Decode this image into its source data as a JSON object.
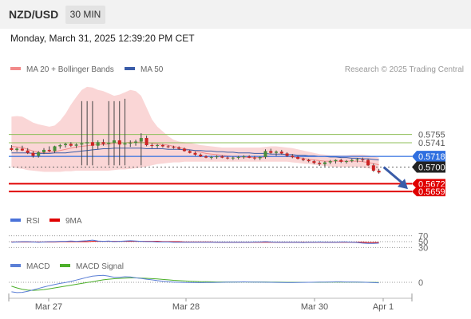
{
  "header": {
    "symbol": "NZD/USD",
    "timeframe": "30 MIN",
    "datetime": "Monday, March 31, 2025 12:39:20 PM CET"
  },
  "colors": {
    "bollinger": "#f28a8a",
    "ma50": "#3a5ca8",
    "green": "#8fbf5a",
    "blue": "#2f6fe0",
    "red": "#e00000",
    "black": "#222222",
    "rsi": "#4a72d9",
    "macd": "#5b7fd6",
    "macd_signal": "#4caf2a",
    "candle_up": "#4a8c3a",
    "candle_down": "#cc2222"
  },
  "chart_data": [
    {
      "type": "candlestick",
      "legend": [
        {
          "name": "MA 20 + Bollinger Bands",
          "color": "#f28a8a"
        },
        {
          "name": "MA 50",
          "color": "#3a5ca8"
        }
      ],
      "credit": "Research © 2025 Trading Central",
      "ylim": [
        0.5635,
        0.5847
      ],
      "x_ticks": [
        "Mar 27",
        "Mar 28",
        "Mar 30",
        "Apr 1"
      ],
      "levels": [
        {
          "value": 0.5755,
          "label": "0.5755",
          "kind": "green"
        },
        {
          "value": 0.5741,
          "label": "0.5741",
          "kind": "green"
        },
        {
          "value": 0.5718,
          "label": "0.5718",
          "kind": "blue"
        },
        {
          "value": 0.57,
          "label": "0.5700",
          "kind": "black"
        },
        {
          "value": 0.5672,
          "label": "0.5672",
          "kind": "red"
        },
        {
          "value": 0.5659,
          "label": "0.5659",
          "kind": "red"
        }
      ],
      "candles": [
        [
          0.5732,
          0.5737,
          0.5727,
          0.5729
        ],
        [
          0.5729,
          0.5733,
          0.5726,
          0.5731
        ],
        [
          0.5731,
          0.5736,
          0.5727,
          0.5728
        ],
        [
          0.5728,
          0.5732,
          0.5722,
          0.5724
        ],
        [
          0.5724,
          0.5727,
          0.5716,
          0.5719
        ],
        [
          0.5719,
          0.5727,
          0.5716,
          0.5725
        ],
        [
          0.5725,
          0.5732,
          0.5722,
          0.5729
        ],
        [
          0.5729,
          0.5735,
          0.5725,
          0.5727
        ],
        [
          0.5727,
          0.5736,
          0.5724,
          0.5735
        ],
        [
          0.5735,
          0.5739,
          0.5731,
          0.5737
        ],
        [
          0.5737,
          0.5741,
          0.5733,
          0.5739
        ],
        [
          0.5739,
          0.5742,
          0.5734,
          0.5736
        ],
        [
          0.5736,
          0.574,
          0.5732,
          0.5738
        ],
        [
          0.5738,
          0.5811,
          0.5703,
          0.574
        ],
        [
          0.574,
          0.5811,
          0.5703,
          0.5742
        ],
        [
          0.5742,
          0.5811,
          0.5703,
          0.5736
        ],
        [
          0.5736,
          0.5745,
          0.573,
          0.5742
        ],
        [
          0.5742,
          0.5747,
          0.5736,
          0.5739
        ],
        [
          0.5739,
          0.5811,
          0.5703,
          0.5741
        ],
        [
          0.5741,
          0.5811,
          0.5703,
          0.5745
        ],
        [
          0.5745,
          0.5811,
          0.5703,
          0.5738
        ],
        [
          0.5738,
          0.5815,
          0.5703,
          0.574
        ],
        [
          0.574,
          0.5745,
          0.5734,
          0.5741
        ],
        [
          0.5741,
          0.5746,
          0.5736,
          0.5743
        ],
        [
          0.5743,
          0.5757,
          0.5703,
          0.5749
        ],
        [
          0.5749,
          0.5753,
          0.5735,
          0.5737
        ],
        [
          0.5737,
          0.574,
          0.5732,
          0.5736
        ],
        [
          0.5736,
          0.5739,
          0.5732,
          0.5737
        ],
        [
          0.5737,
          0.5739,
          0.5733,
          0.5735
        ],
        [
          0.5735,
          0.5737,
          0.5732,
          0.5734
        ],
        [
          0.5734,
          0.5736,
          0.5731,
          0.5733
        ],
        [
          0.5733,
          0.5735,
          0.5729,
          0.5731
        ],
        [
          0.5731,
          0.5733,
          0.5726,
          0.5727
        ],
        [
          0.5727,
          0.5729,
          0.5723,
          0.5724
        ],
        [
          0.5724,
          0.5726,
          0.5719,
          0.5721
        ],
        [
          0.5721,
          0.5723,
          0.5717,
          0.5718
        ],
        [
          0.5718,
          0.572,
          0.5715,
          0.5716
        ],
        [
          0.5716,
          0.5719,
          0.5713,
          0.5717
        ],
        [
          0.5717,
          0.572,
          0.5714,
          0.5718
        ],
        [
          0.5718,
          0.572,
          0.5715,
          0.5716
        ],
        [
          0.5716,
          0.5718,
          0.5713,
          0.5715
        ],
        [
          0.5715,
          0.5718,
          0.5712,
          0.5716
        ],
        [
          0.5716,
          0.5719,
          0.5713,
          0.5717
        ],
        [
          0.5717,
          0.572,
          0.5714,
          0.5718
        ],
        [
          0.5718,
          0.572,
          0.5715,
          0.5716
        ],
        [
          0.5716,
          0.5719,
          0.5712,
          0.5715
        ],
        [
          0.5715,
          0.5718,
          0.5712,
          0.5717
        ],
        [
          0.5717,
          0.573,
          0.5714,
          0.5727
        ],
        [
          0.5727,
          0.5731,
          0.5722,
          0.5724
        ],
        [
          0.5724,
          0.5728,
          0.5719,
          0.5726
        ],
        [
          0.5726,
          0.5729,
          0.5721,
          0.5723
        ],
        [
          0.5723,
          0.5725,
          0.5717,
          0.5719
        ],
        [
          0.5719,
          0.5722,
          0.5715,
          0.5717
        ],
        [
          0.5717,
          0.5719,
          0.5713,
          0.5714
        ],
        [
          0.5714,
          0.5716,
          0.571,
          0.5712
        ],
        [
          0.5712,
          0.5714,
          0.5708,
          0.571
        ],
        [
          0.571,
          0.5712,
          0.5705,
          0.5707
        ],
        [
          0.5707,
          0.571,
          0.5702,
          0.5705
        ],
        [
          0.5705,
          0.571,
          0.5701,
          0.5708
        ],
        [
          0.5708,
          0.5712,
          0.5705,
          0.571
        ],
        [
          0.571,
          0.5713,
          0.5706,
          0.5712
        ],
        [
          0.5712,
          0.5714,
          0.5707,
          0.5709
        ],
        [
          0.5709,
          0.5712,
          0.5706,
          0.571
        ],
        [
          0.571,
          0.5714,
          0.5708,
          0.5712
        ],
        [
          0.5712,
          0.5715,
          0.5708,
          0.5713
        ],
        [
          0.5713,
          0.5716,
          0.5709,
          0.5712
        ],
        [
          0.5712,
          0.5714,
          0.5702,
          0.5703
        ],
        [
          0.5703,
          0.5706,
          0.5692,
          0.5694
        ],
        [
          0.5694,
          0.5697,
          0.5689,
          0.5691
        ]
      ],
      "upper_band": [
        0.5785,
        0.5786,
        0.5785,
        0.578,
        0.5775,
        0.5772,
        0.577,
        0.5768,
        0.577,
        0.5778,
        0.579,
        0.5805,
        0.5818,
        0.583,
        0.5835,
        0.5834,
        0.583,
        0.5828,
        0.5824,
        0.582,
        0.5822,
        0.5826,
        0.583,
        0.5828,
        0.582,
        0.58,
        0.578,
        0.5768,
        0.576,
        0.5752,
        0.5746,
        0.5743,
        0.5742,
        0.5741,
        0.5739,
        0.5737,
        0.5736,
        0.5735,
        0.5734,
        0.5733,
        0.5733,
        0.5733,
        0.5733,
        0.5733,
        0.5733,
        0.5733,
        0.5733,
        0.5734,
        0.5735,
        0.5735,
        0.5734,
        0.5733,
        0.5732,
        0.573,
        0.5728,
        0.5726,
        0.5724,
        0.5722,
        0.5721,
        0.572,
        0.572,
        0.572,
        0.572,
        0.5721,
        0.5721,
        0.5721,
        0.572,
        0.5718,
        0.5716
      ],
      "middle_band": [
        0.5735,
        0.5734,
        0.5733,
        0.573,
        0.5727,
        0.5725,
        0.5724,
        0.5725,
        0.5726,
        0.5728,
        0.573,
        0.5732,
        0.5734,
        0.5735,
        0.5736,
        0.5737,
        0.5738,
        0.5738,
        0.5739,
        0.574,
        0.5741,
        0.5741,
        0.5742,
        0.5742,
        0.5742,
        0.5741,
        0.574,
        0.5739,
        0.5738,
        0.5737,
        0.5735,
        0.5733,
        0.5731,
        0.5729,
        0.5727,
        0.5725,
        0.5723,
        0.5722,
        0.5721,
        0.572,
        0.5719,
        0.5718,
        0.5717,
        0.5717,
        0.5716,
        0.5716,
        0.5716,
        0.5717,
        0.5718,
        0.5718,
        0.5718,
        0.5718,
        0.5717,
        0.5716,
        0.5715,
        0.5713,
        0.5712,
        0.5711,
        0.571,
        0.571,
        0.571,
        0.571,
        0.571,
        0.571,
        0.571,
        0.5709,
        0.5708,
        0.5706,
        0.5704
      ],
      "lower_band": [
        0.57,
        0.5698,
        0.5697,
        0.5695,
        0.5694,
        0.5693,
        0.5692,
        0.5692,
        0.5692,
        0.5692,
        0.5693,
        0.5693,
        0.5694,
        0.5694,
        0.5694,
        0.5694,
        0.5694,
        0.5694,
        0.5694,
        0.5695,
        0.5696,
        0.5696,
        0.5697,
        0.5698,
        0.5699,
        0.5701,
        0.5703,
        0.5705,
        0.5706,
        0.5707,
        0.5708,
        0.5708,
        0.5709,
        0.5709,
        0.5709,
        0.5709,
        0.5709,
        0.5709,
        0.5709,
        0.5709,
        0.5709,
        0.5709,
        0.5709,
        0.5709,
        0.5709,
        0.5709,
        0.5709,
        0.5709,
        0.5709,
        0.5709,
        0.5709,
        0.5709,
        0.5708,
        0.5707,
        0.5706,
        0.5705,
        0.5704,
        0.5703,
        0.5702,
        0.5701,
        0.57,
        0.57,
        0.57,
        0.57,
        0.57,
        0.5699,
        0.5698,
        0.5696,
        0.5693
      ],
      "ma50": [
        0.5724,
        0.5724,
        0.5724,
        0.5724,
        0.5723,
        0.5723,
        0.5723,
        0.5723,
        0.5724,
        0.5724,
        0.5724,
        0.5725,
        0.5726,
        0.5727,
        0.5728,
        0.5729,
        0.573,
        0.5731,
        0.5731,
        0.5732,
        0.5732,
        0.5732,
        0.5732,
        0.5732,
        0.5732,
        0.5731,
        0.5731,
        0.5731,
        0.5731,
        0.573,
        0.573,
        0.573,
        0.5729,
        0.5729,
        0.5728,
        0.5728,
        0.5727,
        0.5727,
        0.5726,
        0.5726,
        0.5725,
        0.5725,
        0.5724,
        0.5724,
        0.5724,
        0.5723,
        0.5723,
        0.5723,
        0.5722,
        0.5722,
        0.5722,
        0.5721,
        0.5721,
        0.572,
        0.572,
        0.5719,
        0.5719,
        0.5718,
        0.5718,
        0.5717,
        0.5717,
        0.5716,
        0.5716,
        0.5715,
        0.5715,
        0.5714,
        0.5714,
        0.5713,
        0.5712
      ],
      "forecast_arrow": {
        "from": 0.57,
        "to": 0.5663
      }
    },
    {
      "type": "line",
      "legend": [
        {
          "name": "RSI",
          "color": "#4a72d9"
        },
        {
          "name": "9MA",
          "color": "#e00000"
        }
      ],
      "ylim": [
        15,
        85
      ],
      "y_ticks": [
        {
          "value": 70,
          "label": "70"
        },
        {
          "value": 50,
          "label": "50"
        },
        {
          "value": 30,
          "label": "30"
        }
      ],
      "series": [
        {
          "name": "RSI",
          "values": [
            48,
            49,
            50,
            50,
            49,
            48,
            49,
            50,
            50,
            51,
            51,
            52,
            51,
            52,
            53,
            55,
            52,
            51,
            52,
            50,
            51,
            52,
            53,
            52,
            51,
            50,
            50,
            49,
            49,
            49,
            48,
            48,
            48,
            48,
            48,
            48,
            48,
            48,
            48,
            48,
            48,
            48,
            48,
            48,
            48,
            49,
            49,
            50,
            49,
            48,
            48,
            48,
            48,
            48,
            47,
            48,
            48,
            49,
            48,
            48,
            48,
            49,
            49,
            48,
            47,
            45,
            44,
            44,
            45
          ]
        },
        {
          "name": "9MA",
          "values": [
            49,
            49,
            49,
            49,
            49,
            49,
            49,
            49,
            49,
            50,
            50,
            50,
            50,
            50,
            50,
            51,
            51,
            51,
            51,
            51,
            51,
            51,
            51,
            51,
            51,
            51,
            51,
            51,
            50,
            50,
            50,
            50,
            49,
            49,
            49,
            49,
            49,
            49,
            48,
            48,
            48,
            48,
            48,
            48,
            48,
            48,
            48,
            48,
            48,
            48,
            48,
            48,
            48,
            48,
            48,
            48,
            48,
            48,
            48,
            48,
            48,
            48,
            48,
            48,
            48,
            48,
            47,
            47,
            47
          ]
        }
      ]
    },
    {
      "type": "line",
      "legend": [
        {
          "name": "MACD",
          "color": "#5b7fd6"
        },
        {
          "name": "MACD Signal",
          "color": "#4caf2a"
        }
      ],
      "ylim": [
        -1,
        1
      ],
      "y_ticks": [
        {
          "value": 0,
          "label": "0"
        }
      ],
      "series": [
        {
          "name": "MACD",
          "values": [
            -0.85,
            -0.92,
            -0.9,
            -0.8,
            -0.68,
            -0.55,
            -0.42,
            -0.3,
            -0.2,
            -0.1,
            -0.02,
            0.08,
            0.2,
            0.32,
            0.45,
            0.55,
            0.6,
            0.62,
            0.55,
            0.45,
            0.45,
            0.5,
            0.48,
            0.4,
            0.35,
            0.28,
            0.22,
            0.15,
            0.1,
            0.05,
            0.02,
            0,
            -0.02,
            -0.03,
            -0.03,
            -0.03,
            -0.02,
            -0.02,
            -0.01,
            0,
            0.02,
            0.02,
            0.03,
            0.04,
            0.03,
            0.02,
            0.02,
            0.01,
            0,
            -0.01,
            -0.02,
            -0.03,
            -0.03,
            -0.02,
            -0.01,
            0,
            0.01,
            0.02,
            0.02,
            0.03,
            0.04,
            0.04,
            0.03,
            0.03,
            0.02,
            0.01,
            -0.01,
            -0.03,
            -0.04
          ]
        },
        {
          "name": "MACD Signal",
          "values": [
            -0.35,
            -0.5,
            -0.62,
            -0.7,
            -0.72,
            -0.7,
            -0.65,
            -0.58,
            -0.5,
            -0.42,
            -0.34,
            -0.26,
            -0.18,
            -0.1,
            -0.02,
            0.06,
            0.14,
            0.22,
            0.28,
            0.32,
            0.35,
            0.38,
            0.4,
            0.4,
            0.38,
            0.36,
            0.33,
            0.3,
            0.26,
            0.22,
            0.18,
            0.15,
            0.12,
            0.1,
            0.08,
            0.06,
            0.05,
            0.04,
            0.03,
            0.03,
            0.03,
            0.03,
            0.03,
            0.03,
            0.03,
            0.03,
            0.03,
            0.03,
            0.02,
            0.02,
            0.01,
            0,
            0,
            0,
            0,
            0,
            0,
            0.01,
            0.01,
            0.02,
            0.02,
            0.02,
            0.02,
            0.02,
            0.02,
            0.01,
            0,
            -0.01,
            -0.02
          ]
        }
      ]
    }
  ]
}
